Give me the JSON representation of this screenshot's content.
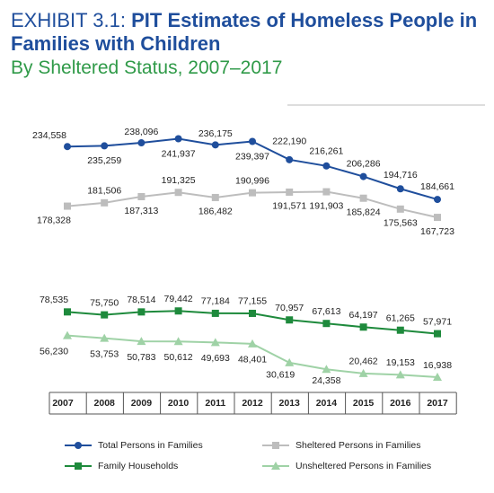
{
  "chart_data": {
    "type": "line",
    "title_prefix": "EXHIBIT 3.1:",
    "title": "PIT Estimates of Homeless People in Families with Children",
    "subtitle": "By Sheltered Status, 2007–2017",
    "categories": [
      "2007",
      "2008",
      "2009",
      "2010",
      "2011",
      "2012",
      "2013",
      "2014",
      "2015",
      "2016",
      "2017"
    ],
    "series": [
      {
        "name": "Total Persons in Families",
        "color": "#1f4e9c",
        "marker": "circle",
        "values": [
          234558,
          235259,
          238096,
          241937,
          236175,
          239397,
          222190,
          216261,
          206286,
          194716,
          184661
        ],
        "value_labels": [
          "234,558",
          "235,259",
          "238,096",
          "241,937",
          "236,175",
          "239,397",
          "222,190",
          "216,261",
          "206,286",
          "194,716",
          "184,661"
        ]
      },
      {
        "name": "Sheltered Persons in Families",
        "color": "#bdbdbd",
        "marker": "square",
        "values": [
          178328,
          181506,
          187313,
          191325,
          186482,
          190996,
          191571,
          191903,
          185824,
          175563,
          167723
        ],
        "value_labels": [
          "178,328",
          "181,506",
          "187,313",
          "191,325",
          "186,482",
          "190,996",
          "191,571",
          "191,903",
          "185,824",
          "175,563",
          "167,723"
        ]
      },
      {
        "name": "Family Households",
        "color": "#1e8a3c",
        "marker": "square",
        "values": [
          78535,
          75750,
          78514,
          79442,
          77184,
          77155,
          70957,
          67613,
          64197,
          61265,
          57971
        ],
        "value_labels": [
          "78,535",
          "75,750",
          "78,514",
          "79,442",
          "77,184",
          "77,155",
          "70,957",
          "67,613",
          "64,197",
          "61,265",
          "57,971"
        ]
      },
      {
        "name": "Unsheltered Persons in Families",
        "color": "#9fd2a6",
        "marker": "triangle",
        "values": [
          56230,
          53753,
          50783,
          50612,
          49693,
          48401,
          30619,
          24358,
          20462,
          19153,
          16938
        ],
        "value_labels": [
          "56,230",
          "53,753",
          "50,783",
          "50,612",
          "49,693",
          "48,401",
          "30,619",
          "24,358",
          "20,462",
          "19,153",
          "16,938"
        ]
      }
    ]
  }
}
